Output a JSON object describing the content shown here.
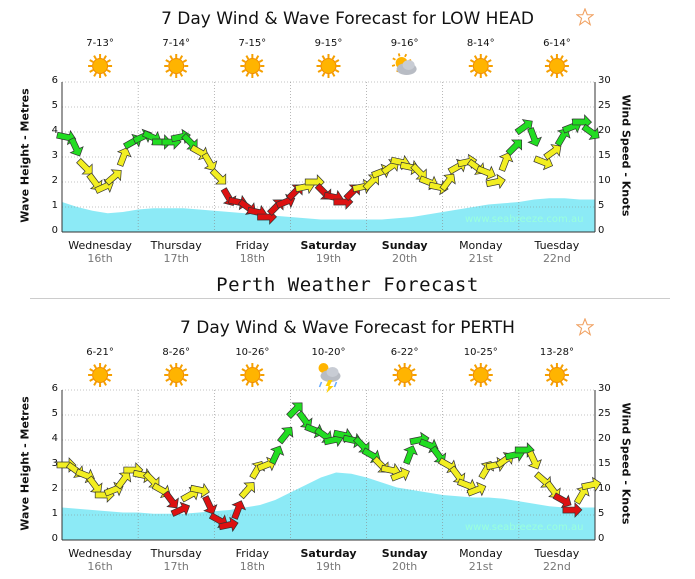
{
  "section_title": "Perth Weather Forecast",
  "colors": {
    "swell_fill": "#7fe8f5",
    "green": "#22dd22",
    "yellow": "#f2ee22",
    "red": "#dd1111",
    "grid": "#888888"
  },
  "chart_data": [
    {
      "type": "line",
      "title": "7 Day Wind & Wave Forecast for LOW HEAD",
      "ylabel": "Wave Height - Metres",
      "y2label": "Wind Speed - Knots",
      "ylim": [
        0,
        6
      ],
      "y2lim": [
        0,
        30
      ],
      "yticks": [
        "0",
        "1",
        "2",
        "3",
        "4",
        "5",
        "6"
      ],
      "y2ticks": [
        "0",
        "5",
        "10",
        "15",
        "20",
        "25",
        "30"
      ],
      "watermark": "www.seabreeze.com.au",
      "days": [
        {
          "name": "Wednesday",
          "date": "16th",
          "temp": "7-13°",
          "icon": "sun-icon",
          "bold": false
        },
        {
          "name": "Thursday",
          "date": "17th",
          "temp": "7-14°",
          "icon": "sun-icon",
          "bold": false
        },
        {
          "name": "Friday",
          "date": "18th",
          "temp": "7-15°",
          "icon": "sun-icon",
          "bold": false
        },
        {
          "name": "Saturday",
          "date": "19th",
          "temp": "9-15°",
          "icon": "sun-icon",
          "bold": true
        },
        {
          "name": "Sunday",
          "date": "20th",
          "temp": "9-16°",
          "icon": "cloudy-sun-icon",
          "bold": true
        },
        {
          "name": "Monday",
          "date": "21st",
          "temp": "8-14°",
          "icon": "sun-icon",
          "bold": false
        },
        {
          "name": "Tuesday",
          "date": "22nd",
          "temp": "6-14°",
          "icon": "sun-icon",
          "bold": false
        }
      ],
      "wave_height": [
        1.2,
        1.0,
        0.85,
        0.75,
        0.8,
        0.9,
        0.95,
        0.95,
        0.95,
        0.9,
        0.85,
        0.8,
        0.75,
        0.7,
        0.65,
        0.6,
        0.55,
        0.5,
        0.5,
        0.5,
        0.5,
        0.5,
        0.55,
        0.6,
        0.7,
        0.8,
        0.9,
        1.0,
        1.1,
        1.15,
        1.2,
        1.3,
        1.35,
        1.35,
        1.3,
        1.3
      ],
      "wind_speed": [
        19,
        17,
        13,
        10,
        9,
        11,
        15,
        18,
        19,
        19,
        18,
        18,
        19,
        18,
        16,
        14,
        11,
        7,
        6,
        5,
        4,
        3,
        5,
        6,
        8,
        9,
        10,
        8,
        7,
        6,
        8,
        9,
        10,
        12,
        13,
        14,
        13,
        12,
        10,
        9,
        10,
        13,
        14,
        13,
        12,
        10,
        14,
        17,
        21,
        19,
        14,
        16,
        19,
        21,
        22,
        20
      ]
    },
    {
      "type": "line",
      "title": "7 Day Wind & Wave Forecast for PERTH",
      "ylabel": "Wave Height - Metres",
      "y2label": "Wind Speed - Knots",
      "ylim": [
        0,
        6
      ],
      "y2lim": [
        0,
        30
      ],
      "yticks": [
        "0",
        "1",
        "2",
        "3",
        "4",
        "5",
        "6"
      ],
      "y2ticks": [
        "0",
        "5",
        "10",
        "15",
        "20",
        "25",
        "30"
      ],
      "watermark": "www.seabreeze.com.au",
      "days": [
        {
          "name": "Wednesday",
          "date": "16th",
          "temp": "6-21°",
          "icon": "sun-icon",
          "bold": false
        },
        {
          "name": "Thursday",
          "date": "17th",
          "temp": "8-26°",
          "icon": "sun-icon",
          "bold": false
        },
        {
          "name": "Friday",
          "date": "18th",
          "temp": "10-26°",
          "icon": "sun-icon",
          "bold": false
        },
        {
          "name": "Saturday",
          "date": "19th",
          "temp": "10-20°",
          "icon": "storm-icon",
          "bold": true
        },
        {
          "name": "Sunday",
          "date": "20th",
          "temp": "6-22°",
          "icon": "sun-icon",
          "bold": true
        },
        {
          "name": "Monday",
          "date": "21st",
          "temp": "10-25°",
          "icon": "sun-icon",
          "bold": false
        },
        {
          "name": "Tuesday",
          "date": "22nd",
          "temp": "13-28°",
          "icon": "sun-icon",
          "bold": false
        }
      ],
      "wave_height": [
        1.3,
        1.25,
        1.2,
        1.15,
        1.1,
        1.1,
        1.05,
        1.05,
        1.05,
        1.1,
        1.15,
        1.2,
        1.3,
        1.4,
        1.6,
        1.9,
        2.2,
        2.5,
        2.7,
        2.65,
        2.5,
        2.3,
        2.1,
        2.0,
        1.9,
        1.8,
        1.75,
        1.7,
        1.7,
        1.65,
        1.55,
        1.45,
        1.35,
        1.3,
        1.3,
        1.3
      ],
      "wind_speed": [
        15,
        14,
        13,
        11,
        9,
        10,
        12,
        14,
        13,
        12,
        10,
        8,
        6,
        9,
        10,
        7,
        4,
        3,
        6,
        10,
        14,
        15,
        17,
        21,
        26,
        24,
        22,
        21,
        20,
        21,
        20,
        19,
        17,
        15,
        14,
        13,
        17,
        20,
        19,
        17,
        15,
        13,
        11,
        10,
        14,
        15,
        16,
        17,
        18,
        16,
        12,
        10,
        8,
        6,
        9,
        11
      ]
    }
  ]
}
